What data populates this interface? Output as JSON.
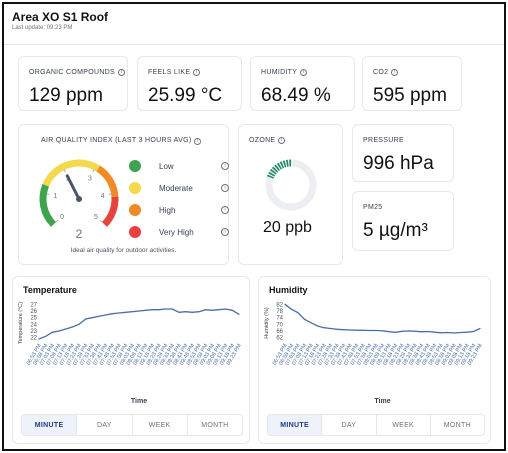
{
  "header": {
    "title": "Area XO S1 Roof",
    "last_update": "Last update: 09:23 PM"
  },
  "kpis": [
    {
      "label": "ORGANIC COMPOUNDS",
      "value": "129 ppm"
    },
    {
      "label": "FEELS LIKE",
      "value": "25.99 °C"
    },
    {
      "label": "HUMIDITY",
      "value": "68.49 %"
    },
    {
      "label": "CO2",
      "value": "595 ppm"
    }
  ],
  "aqi": {
    "title": "AIR QUALITY INDEX (LAST 3 HOURS AVG)",
    "gauge_value": 2,
    "gauge_max": 5,
    "gauge_value_label": "2",
    "ticks": [
      "0",
      "1",
      "2",
      "3",
      "4",
      "5"
    ],
    "note": "Ideal air quality for outdoor activities.",
    "legend": [
      {
        "label": "Low",
        "color": "#3fa34d"
      },
      {
        "label": "Moderate",
        "color": "#f2d94e"
      },
      {
        "label": "High",
        "color": "#f08a24"
      },
      {
        "label": "Very High",
        "color": "#e8423f"
      }
    ]
  },
  "ozone": {
    "label": "OZONE",
    "value": "20 ppb",
    "level": 0.2
  },
  "pressure": {
    "label": "PRESSURE",
    "value": "996 hPa"
  },
  "pm25": {
    "label": "PM25",
    "value": "5 µg/m³"
  },
  "time_labels": [
    "06:53 PM",
    "06:58 PM",
    "07:03 PM",
    "07:08 PM",
    "07:13 PM",
    "07:18 PM",
    "07:23 PM",
    "07:28 PM",
    "07:33 PM",
    "07:38 PM",
    "07:43 PM",
    "07:48 PM",
    "07:53 PM",
    "07:58 PM",
    "08:03 PM",
    "08:08 PM",
    "08:13 PM",
    "08:18 PM",
    "08:23 PM",
    "08:28 PM",
    "08:33 PM",
    "08:38 PM",
    "08:43 PM",
    "08:48 PM",
    "08:53 PM",
    "08:58 PM",
    "09:03 PM",
    "09:08 PM",
    "09:13 PM",
    "09:18 PM",
    "09:23 PM"
  ],
  "tabs": [
    "MINUTE",
    "DAY",
    "WEEK",
    "MONTH"
  ],
  "chart_data": [
    {
      "type": "line",
      "title": "Temperature",
      "xlabel": "Time",
      "ylabel": "Temperature (°C)",
      "y_ticks": [
        22,
        23,
        24,
        25,
        26,
        27
      ],
      "ylim": [
        21.5,
        27.5
      ],
      "series": [
        {
          "values": [
            21.8,
            22.2,
            22.8,
            23.0,
            23.3,
            23.6,
            24.0,
            24.8,
            25.0,
            25.2,
            25.4,
            25.6,
            25.7,
            25.8,
            25.9,
            26.0,
            26.1,
            26.2,
            26.2,
            26.3,
            26.3,
            25.8,
            25.9,
            25.8,
            25.9,
            26.2,
            26.1,
            26.2,
            26.3,
            26.1,
            25.5
          ]
        }
      ]
    },
    {
      "type": "line",
      "title": "Humidity",
      "xlabel": "Time",
      "ylabel": "Humidity (%)",
      "y_ticks": [
        62,
        66,
        70,
        74,
        78,
        82
      ],
      "ylim": [
        60,
        84
      ],
      "series": [
        {
          "values": [
            82,
            79,
            77,
            73,
            71,
            69,
            68,
            67.5,
            67,
            66.8,
            66.6,
            66.5,
            66.4,
            66.3,
            66.3,
            66.1,
            65.6,
            65.2,
            65.8,
            66,
            65.9,
            65.5,
            65.7,
            65.3,
            64.9,
            65.1,
            64.8,
            65.1,
            65.3,
            65.7,
            67.5
          ]
        }
      ]
    }
  ]
}
